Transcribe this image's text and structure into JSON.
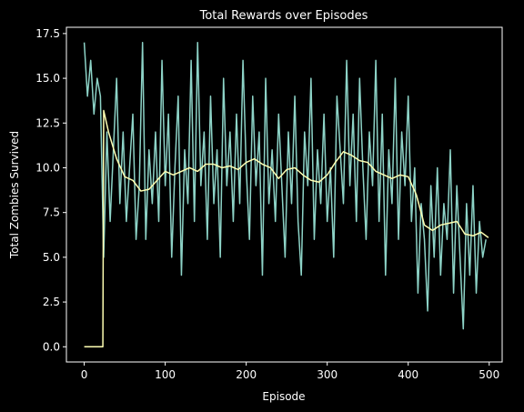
{
  "chart_data": {
    "type": "line",
    "title": "Total Rewards over Episodes",
    "x_label": "Episode",
    "y_label": "Total Zombies Survived",
    "xlim": [
      -22,
      516
    ],
    "ylim": [
      -0.85,
      17.85
    ],
    "xticks": [
      0,
      100,
      200,
      300,
      400,
      500
    ],
    "yticks": [
      {
        "value": 0,
        "label": "0.0"
      },
      {
        "value": 2.5,
        "label": "2.5"
      },
      {
        "value": 5,
        "label": "5.0"
      },
      {
        "value": 7.5,
        "label": "7.5"
      },
      {
        "value": 10,
        "label": "10.0"
      },
      {
        "value": 12.5,
        "label": "12.5"
      },
      {
        "value": 15,
        "label": "15.0"
      },
      {
        "value": 17.5,
        "label": "17.5"
      }
    ],
    "grid": false,
    "series": [
      {
        "color": "#8dd3c7",
        "x": [
          0,
          4,
          8,
          12,
          16,
          20,
          24,
          28,
          32,
          36,
          40,
          44,
          48,
          52,
          56,
          60,
          64,
          68,
          72,
          76,
          80,
          84,
          88,
          92,
          96,
          100,
          104,
          108,
          112,
          116,
          120,
          124,
          128,
          132,
          136,
          140,
          144,
          148,
          152,
          156,
          160,
          164,
          168,
          172,
          176,
          180,
          184,
          188,
          192,
          196,
          200,
          204,
          208,
          212,
          216,
          220,
          224,
          228,
          232,
          236,
          240,
          244,
          248,
          252,
          256,
          260,
          264,
          268,
          272,
          276,
          280,
          284,
          288,
          292,
          296,
          300,
          304,
          308,
          312,
          316,
          320,
          324,
          328,
          332,
          336,
          340,
          344,
          348,
          352,
          356,
          360,
          364,
          368,
          372,
          376,
          380,
          384,
          388,
          392,
          396,
          400,
          404,
          408,
          412,
          416,
          420,
          424,
          428,
          432,
          436,
          440,
          444,
          448,
          452,
          456,
          460,
          464,
          468,
          472,
          476,
          480,
          484,
          488,
          492,
          496
        ],
        "values": [
          17,
          14,
          16,
          13,
          15,
          14,
          5,
          12,
          7,
          11,
          15,
          8,
          12,
          7,
          10,
          13,
          6,
          9,
          17,
          6,
          11,
          8,
          12,
          7,
          16,
          9,
          13,
          5,
          10,
          14,
          4,
          11,
          8,
          16,
          7,
          17,
          9,
          12,
          6,
          14,
          8,
          11,
          5,
          15,
          9,
          12,
          7,
          13,
          8,
          16,
          10,
          6,
          14,
          9,
          12,
          4,
          15,
          8,
          11,
          7,
          13,
          9,
          5,
          12,
          8,
          14,
          7,
          4,
          12,
          9,
          15,
          6,
          11,
          8,
          13,
          7,
          10,
          5,
          14,
          11,
          8,
          16,
          9,
          13,
          7,
          15,
          10,
          6,
          12,
          9,
          16,
          7,
          13,
          4,
          11,
          8,
          15,
          6,
          12,
          9,
          14,
          7,
          10,
          3,
          8,
          6,
          2,
          9,
          5,
          10,
          4,
          8,
          6,
          11,
          3,
          9,
          5,
          1,
          8,
          4,
          9,
          3,
          7,
          5,
          6
        ]
      },
      {
        "color": "#ffffb3",
        "x": [
          0,
          23,
          24,
          30,
          40,
          50,
          60,
          70,
          80,
          90,
          100,
          110,
          120,
          130,
          140,
          150,
          160,
          170,
          180,
          190,
          200,
          210,
          220,
          230,
          240,
          250,
          260,
          270,
          280,
          290,
          300,
          310,
          320,
          330,
          340,
          350,
          360,
          370,
          380,
          390,
          400,
          410,
          420,
          430,
          440,
          450,
          460,
          470,
          480,
          490,
          499
        ],
        "values": [
          0,
          0,
          13.2,
          12,
          10.5,
          9.5,
          9.3,
          8.7,
          8.8,
          9.3,
          9.8,
          9.6,
          9.8,
          10.0,
          9.8,
          10.2,
          10.2,
          10.0,
          10.1,
          9.9,
          10.3,
          10.5,
          10.2,
          10.0,
          9.4,
          9.9,
          10.0,
          9.6,
          9.3,
          9.2,
          9.6,
          10.3,
          10.9,
          10.7,
          10.4,
          10.3,
          9.8,
          9.6,
          9.4,
          9.6,
          9.5,
          8.5,
          6.8,
          6.5,
          6.8,
          6.9,
          7.0,
          6.3,
          6.2,
          6.4,
          6.1
        ]
      }
    ]
  }
}
